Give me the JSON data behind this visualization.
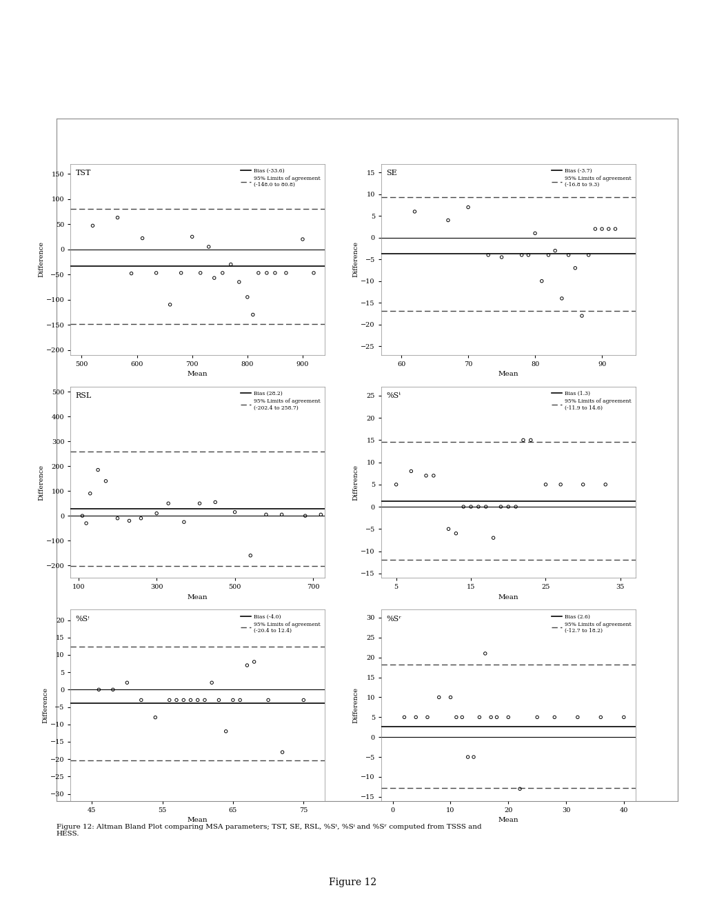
{
  "panels": [
    {
      "title": "TST",
      "bias": -33.6,
      "loa_upper": 80.8,
      "loa_lower": -148.0,
      "bias_label": "Bias (-33.6)",
      "loa_label": "95% Limits of agreement\n(-148.0 to 80.8)",
      "xlim": [
        480,
        940
      ],
      "ylim": [
        -210,
        170
      ],
      "xticks": [
        500,
        600,
        700,
        800,
        900
      ],
      "yticks": [
        -200,
        -150,
        -100,
        -50,
        0,
        50,
        100,
        150
      ],
      "xlabel": "Mean",
      "ylabel": "Difference",
      "scatter_x": [
        520,
        565,
        590,
        610,
        635,
        660,
        680,
        700,
        715,
        730,
        740,
        755,
        770,
        785,
        800,
        810,
        820,
        835,
        850,
        870,
        900,
        920
      ],
      "scatter_y": [
        47,
        63,
        -48,
        22,
        -47,
        -110,
        -47,
        25,
        -47,
        5,
        -57,
        -47,
        -30,
        -65,
        -95,
        -130,
        -47,
        -47,
        -47,
        -47,
        20,
        -47
      ]
    },
    {
      "title": "SE",
      "bias": -3.7,
      "loa_upper": 9.3,
      "loa_lower": -16.8,
      "bias_label": "Bias (-3.7)",
      "loa_label": "95% Limits of agreement\n(-16.8 to 9.3)",
      "xlim": [
        57,
        95
      ],
      "ylim": [
        -27,
        17
      ],
      "xticks": [
        60,
        70,
        80,
        90
      ],
      "yticks": [
        -25,
        -20,
        -15,
        -10,
        -5,
        0,
        5,
        10,
        15
      ],
      "xlabel": "Mean",
      "ylabel": "Difference",
      "scatter_x": [
        62,
        67,
        70,
        73,
        75,
        78,
        79,
        80,
        81,
        82,
        83,
        84,
        85,
        86,
        87,
        88,
        89,
        90,
        91,
        92
      ],
      "scatter_y": [
        6,
        4,
        7,
        -4,
        -4.5,
        -4,
        -4,
        1,
        -10,
        -4,
        -3,
        -14,
        -4,
        -7,
        -18,
        -4,
        2,
        2,
        2,
        2
      ]
    },
    {
      "title": "RSL",
      "bias": 28.2,
      "loa_upper": 258.7,
      "loa_lower": -202.4,
      "bias_label": "Bias (28.2)",
      "loa_label": "95% Limits of agreement\n(-202.4 to 258.7)",
      "xlim": [
        80,
        730
      ],
      "ylim": [
        -250,
        520
      ],
      "xticks": [
        100,
        300,
        500,
        700
      ],
      "yticks": [
        -200,
        -100,
        0,
        100,
        200,
        300,
        400,
        500
      ],
      "xlabel": "Mean",
      "ylabel": "Difference",
      "scatter_x": [
        110,
        120,
        130,
        150,
        170,
        200,
        230,
        260,
        300,
        330,
        370,
        410,
        450,
        500,
        540,
        580,
        620,
        680,
        720
      ],
      "scatter_y": [
        0,
        -30,
        90,
        185,
        140,
        -10,
        -20,
        -10,
        10,
        50,
        -25,
        50,
        55,
        15,
        -160,
        5,
        5,
        0,
        5
      ]
    },
    {
      "title": "%Sᵗ",
      "bias": 1.3,
      "loa_upper": 14.6,
      "loa_lower": -11.9,
      "bias_label": "Bias (1.3)",
      "loa_label": "95% Limits of agreement\n(-11.9 to 14.6)",
      "xlim": [
        3,
        37
      ],
      "ylim": [
        -16,
        27
      ],
      "xticks": [
        5,
        15,
        25,
        35
      ],
      "yticks": [
        -15,
        -10,
        -5,
        0,
        5,
        10,
        15,
        20,
        25
      ],
      "xlabel": "Mean",
      "ylabel": "Difference",
      "scatter_x": [
        5,
        7,
        9,
        10,
        12,
        13,
        14,
        15,
        16,
        17,
        18,
        19,
        20,
        21,
        22,
        23,
        25,
        27,
        30,
        33
      ],
      "scatter_y": [
        5,
        8,
        7,
        7,
        -5,
        -6,
        0,
        0,
        0,
        0,
        -7,
        0,
        0,
        0,
        15,
        15,
        5,
        5,
        5,
        5
      ]
    },
    {
      "title": "%Sᵎ",
      "bias": -4.0,
      "loa_upper": 12.4,
      "loa_lower": -20.4,
      "bias_label": "Bias (-4.0)",
      "loa_label": "95% Limits of agreement\n(-20.4 to 12.4)",
      "xlim": [
        42,
        78
      ],
      "ylim": [
        -32,
        23
      ],
      "xticks": [
        45,
        55,
        65,
        75
      ],
      "yticks": [
        -30,
        -25,
        -20,
        -15,
        -10,
        -5,
        0,
        5,
        10,
        15,
        20
      ],
      "xlabel": "Mean",
      "ylabel": "Difference",
      "scatter_x": [
        46,
        48,
        50,
        52,
        54,
        56,
        57,
        58,
        59,
        60,
        61,
        62,
        63,
        64,
        65,
        66,
        67,
        68,
        70,
        72,
        75
      ],
      "scatter_y": [
        0,
        0,
        2,
        -3,
        -8,
        -3,
        -3,
        -3,
        -3,
        -3,
        -3,
        2,
        -3,
        -12,
        -3,
        -3,
        7,
        8,
        -3,
        -18,
        -3
      ]
    },
    {
      "title": "%Sʳ",
      "bias": 2.6,
      "loa_upper": 18.2,
      "loa_lower": -12.7,
      "bias_label": "Bias (2.6)",
      "loa_label": "95% Limits of agreement\n(-12.7 to 18.2)",
      "xlim": [
        -2,
        42
      ],
      "ylim": [
        -16,
        32
      ],
      "xticks": [
        0,
        10,
        20,
        30,
        40
      ],
      "yticks": [
        -15,
        -10,
        -5,
        0,
        5,
        10,
        15,
        20,
        25,
        30
      ],
      "xlabel": "Mean",
      "ylabel": "Difference",
      "scatter_x": [
        2,
        4,
        6,
        8,
        10,
        11,
        12,
        13,
        14,
        15,
        16,
        17,
        18,
        20,
        22,
        25,
        28,
        32,
        36,
        40
      ],
      "scatter_y": [
        5,
        5,
        5,
        10,
        10,
        5,
        5,
        -5,
        -5,
        5,
        21,
        5,
        5,
        5,
        -13,
        5,
        5,
        5,
        5,
        5
      ]
    }
  ],
  "figure_caption": "Figure 12: Altman Bland Plot comparing MSA parameters; TST, SE, RSL, %Sᵗ, %Sᵎ and %Sʳ computed from TSSS and\nHESS.",
  "figure_label": "Figure 12",
  "bg_color": "#ffffff",
  "line_color": "#000000",
  "scatter_color": "#000000",
  "bias_line_color": "#000000",
  "loa_line_color": "#555555"
}
